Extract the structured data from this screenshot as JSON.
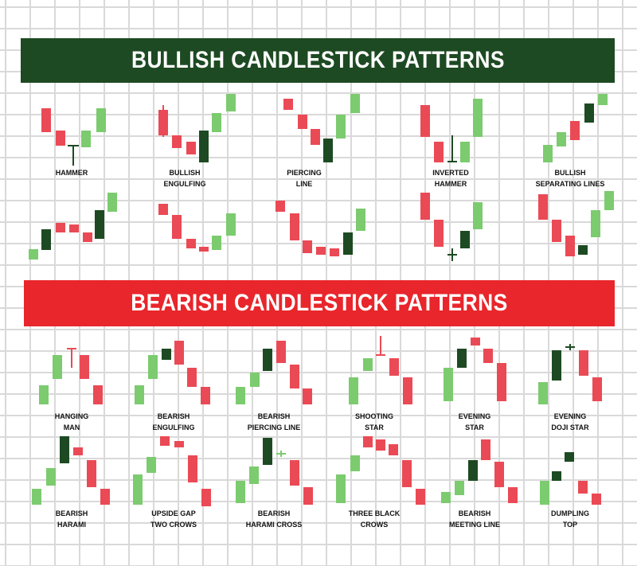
{
  "colors": {
    "bull_banner": "#1d4a22",
    "bear_banner": "#e8262b",
    "bull_candle": "#7ccb6f",
    "bear_candle": "#ea4a55",
    "dark_candle": "#1d4a22"
  },
  "bullish": {
    "title": "BULLISH CANDLESTICK PATTERNS",
    "patterns": [
      {
        "id": "hammer",
        "line1": "HAMMER",
        "line2": ""
      },
      {
        "id": "bullish-engulfing",
        "line1": "BULLISH",
        "line2": "ENGULFING"
      },
      {
        "id": "piercing-line",
        "line1": "PIERCING",
        "line2": "LINE"
      },
      {
        "id": "inverted-hammer",
        "line1": "INVERTED",
        "line2": "HAMMER"
      },
      {
        "id": "bullish-separating-lines",
        "line1": "BULLISH",
        "line2": "SEPARATING LINES"
      }
    ]
  },
  "bearish": {
    "title": "BEARISH CANDLESTICK PATTERNS",
    "patterns": [
      {
        "id": "hanging-man",
        "line1": "HANGING",
        "line2": "MAN"
      },
      {
        "id": "bearish-engulfing",
        "line1": "BEARISH",
        "line2": "ENGULFING"
      },
      {
        "id": "bearish-piercing-line",
        "line1": "BEARISH",
        "line2": "PIERCING LINE"
      },
      {
        "id": "shooting-star",
        "line1": "SHOOTING",
        "line2": "STAR"
      },
      {
        "id": "evening-star",
        "line1": "EVENING",
        "line2": "STAR"
      },
      {
        "id": "evening-doji-star",
        "line1": "EVENING",
        "line2": "DOJI STAR"
      },
      {
        "id": "bearish-harami",
        "line1": "BEARISH",
        "line2": "HARAMI"
      },
      {
        "id": "upside-gap-two-crows",
        "line1": "UPSIDE GAP",
        "line2": "TWO CROWS"
      },
      {
        "id": "bearish-harami-cross",
        "line1": "BEARISH",
        "line2": "HARAMI CROSS"
      },
      {
        "id": "three-black-crows",
        "line1": "THREE BLACK",
        "line2": "CROWS"
      },
      {
        "id": "bearish-meeting-line",
        "line1": "BEARISH",
        "line2": "MEETING LINE"
      },
      {
        "id": "dumpling-top",
        "line1": "DUMPLING",
        "line2": "TOP"
      }
    ]
  }
}
